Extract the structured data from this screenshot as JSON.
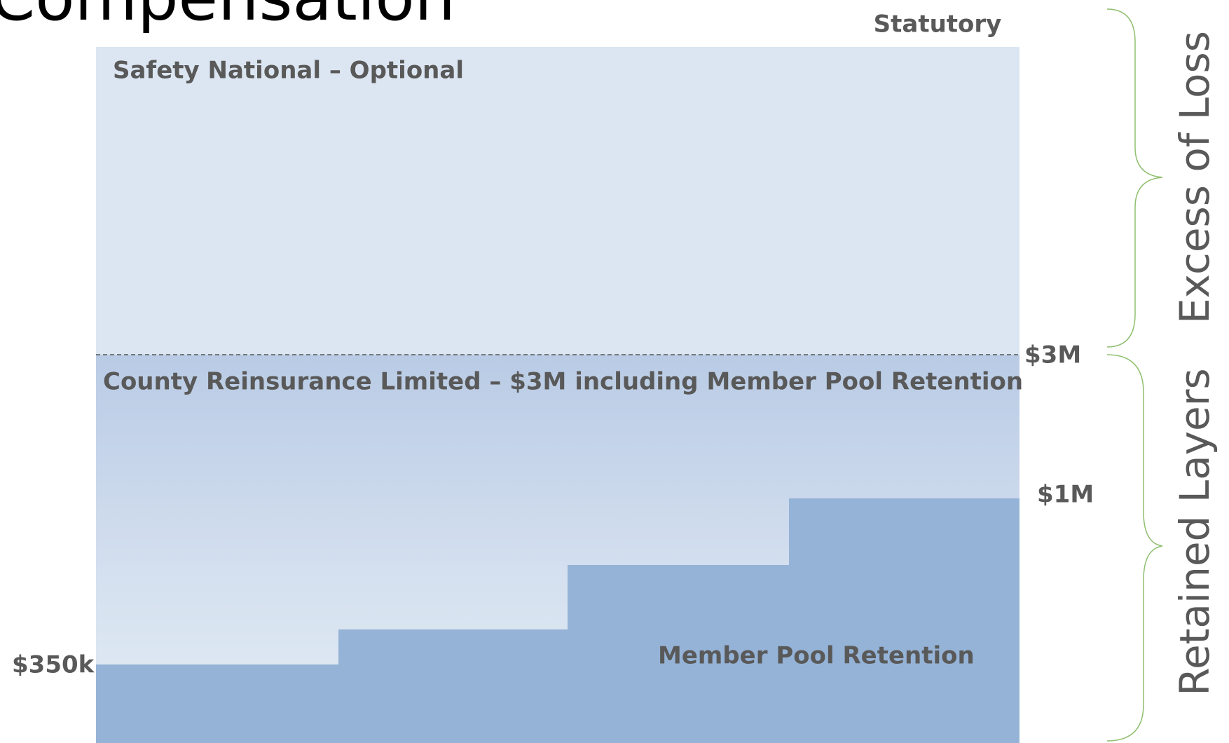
{
  "header": {
    "title": "Compensation"
  },
  "layers": {
    "top_limit": "Statutory",
    "excess": {
      "label": "Safety National – Optional"
    },
    "boundary": "$3M",
    "reinsurance": {
      "label": "County Reinsurance Limited – $3M including Member Pool Retention"
    },
    "retention_high": "$1M",
    "retention_low": "$350k",
    "pool": {
      "label": "Member Pool Retention"
    }
  },
  "brackets": {
    "upper": "Excess of Loss",
    "lower": "Retained Layers"
  }
}
